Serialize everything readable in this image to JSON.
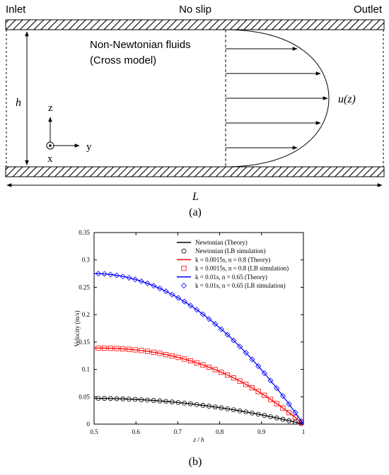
{
  "figure_a": {
    "inlet_label": "Inlet",
    "noslip_label": "No slip",
    "outlet_label": "Outlet",
    "fluid_label_line1": "Non-Newtonian fluids",
    "fluid_label_line2": "(Cross model)",
    "h_label": "h",
    "uz_label": "u(z)",
    "z_axis_label": "z",
    "y_axis_label": "y",
    "x_axis_label": "x",
    "L_label": "L",
    "caption": "(a)"
  },
  "figure_b": {
    "caption": "(b)"
  },
  "chart_data": {
    "type": "line",
    "xlabel": "z / h",
    "ylabel": "Velocity (m/s)",
    "xlim": [
      0.5,
      1.0
    ],
    "ylim": [
      0,
      0.35
    ],
    "xticks": [
      "0.5",
      "0.6",
      "0.7",
      "0.8",
      "0.9",
      "1"
    ],
    "yticks": [
      "0",
      "0.05",
      "0.1",
      "0.15",
      "0.2",
      "0.25",
      "0.3",
      "0.35"
    ],
    "legend_position": "top-right",
    "grid": false,
    "series": [
      {
        "name": "Newtonian (Theory)",
        "style": "line",
        "color": "#000000",
        "vmax": 0.047,
        "exponent": 2
      },
      {
        "name": "Newtonian (LB simulation)",
        "style": "circle",
        "color": "#000000",
        "vmax": 0.047,
        "exponent": 2
      },
      {
        "name": "k = 0.0015s, n = 0.8 (Theory)",
        "style": "line",
        "color": "#ff0000",
        "vmax": 0.139,
        "exponent": 2.3
      },
      {
        "name": "k = 0.0015s, n = 0.8 (LB simulation)",
        "style": "square",
        "color": "#ff0000",
        "vmax": 0.139,
        "exponent": 2.3
      },
      {
        "name": "k = 0.01s, n = 0.65 (Theory)",
        "style": "line",
        "color": "#0000ff",
        "vmax": 0.275,
        "exponent": 2.0
      },
      {
        "name": "k = 0.01s, n = 0.65 (LB simulation)",
        "style": "diamond",
        "color": "#0000ff",
        "vmax": 0.275,
        "exponent": 2.0
      }
    ]
  }
}
